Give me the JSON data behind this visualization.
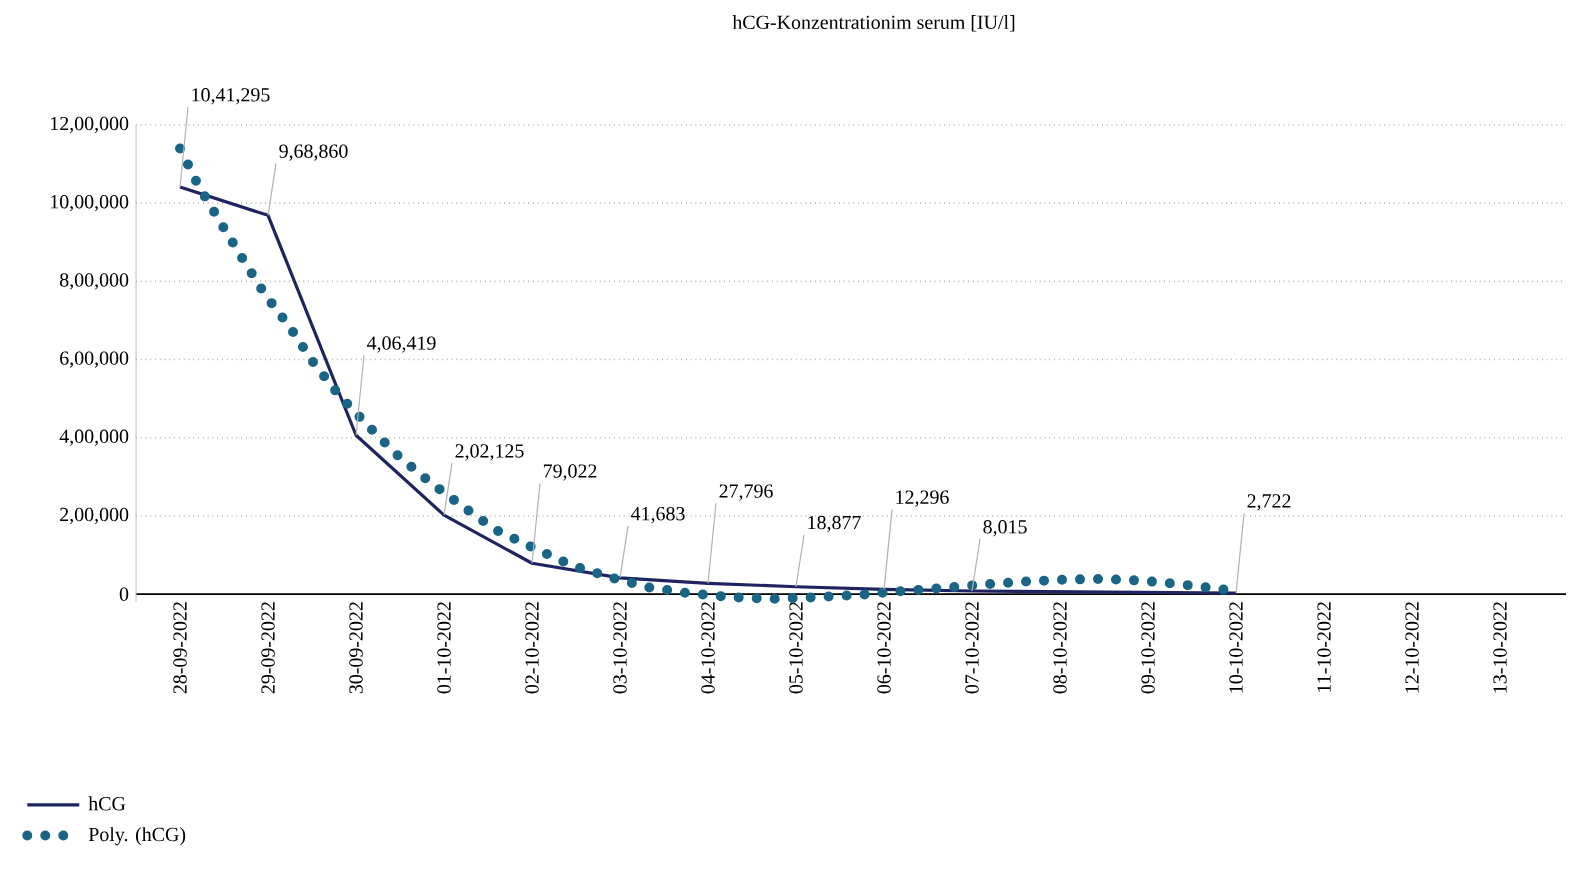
{
  "chart_data": {
    "type": "line",
    "title": "hCG-Konzentrationim serum [IU/l]",
    "xlim": [
      "2022-09-27T12:00",
      "2022-10-13T18:00"
    ],
    "xticks": [
      {
        "value": "2022-09-28",
        "label": "28-09-2022"
      },
      {
        "value": "2022-09-29",
        "label": "29-09-2022"
      },
      {
        "value": "2022-09-30",
        "label": "30-09-2022"
      },
      {
        "value": "2022-10-01",
        "label": "01-10-2022"
      },
      {
        "value": "2022-10-02",
        "label": "02-10-2022"
      },
      {
        "value": "2022-10-03",
        "label": "03-10-2022"
      },
      {
        "value": "2022-10-04",
        "label": "04-10-2022"
      },
      {
        "value": "2022-10-05",
        "label": "05-10-2022"
      },
      {
        "value": "2022-10-06",
        "label": "06-10-2022"
      },
      {
        "value": "2022-10-07",
        "label": "07-10-2022"
      },
      {
        "value": "2022-10-08",
        "label": "08-10-2022"
      },
      {
        "value": "2022-10-09",
        "label": "09-10-2022"
      },
      {
        "value": "2022-10-10",
        "label": "10-10-2022"
      },
      {
        "value": "2022-10-11",
        "label": "11-10-2022"
      },
      {
        "value": "2022-10-12",
        "label": "12-10-2022"
      },
      {
        "value": "2022-10-13",
        "label": "13-10-2022"
      }
    ],
    "ylim": [
      -20000,
      1200000
    ],
    "yticks": [
      0,
      {
        "value": 200000,
        "label": "2,00,000"
      },
      {
        "value": 400000,
        "label": "4,00,000"
      },
      {
        "value": 600000,
        "label": "6,00,000"
      },
      {
        "value": 800000,
        "label": "8,00,000"
      },
      {
        "value": 1000000,
        "label": "10,00,000"
      },
      {
        "value": 1200000,
        "label": "12,00,000"
      }
    ],
    "grid": "y",
    "legend": "bottom left",
    "marker": "none",
    "series": [
      {
        "name": "hCG",
        "color": "#1f2460",
        "line_style": "solid",
        "x": [
          "2022-09-28",
          "2022-09-29",
          "2022-09-30",
          "2022-10-01",
          "2022-10-02",
          "2022-10-03",
          "2022-10-04",
          "2022-10-05",
          "2022-10-06",
          "2022-10-07",
          "2022-10-10"
        ],
        "values": [
          1041295,
          968860,
          406419,
          202125,
          79022,
          41683,
          27796,
          18877,
          12296,
          8015,
          2722
        ],
        "value_labels": [
          "10,41,295",
          "9,68,860",
          "4,06,419",
          "2,02,125",
          "79,022",
          "41,683",
          "27,796",
          "18,877",
          "12,296",
          "8,015",
          "2,722"
        ]
      },
      {
        "name": "Poly. (hCG)",
        "color": "#1a6585",
        "line_style": "dotted",
        "x": [
          "2022-09-28T00:00",
          "2022-09-28T05:00",
          "2022-09-28T11:00",
          "2022-09-28T17:00",
          "2022-09-28T23:00",
          "2022-09-29T06:00",
          "2022-09-29T12:00",
          "2022-09-29T19:00",
          "2022-09-30T03:00",
          "2022-09-30T11:00",
          "2022-09-30T20:00",
          "2022-10-01T05:00",
          "2022-10-01T14:00",
          "2022-10-02T01:00",
          "2022-10-02T11:00",
          "2022-10-02T22:00",
          "2022-10-03T08:00",
          "2022-10-03T19:00",
          "2022-10-04T07:00",
          "2022-10-04T18:00",
          "2022-10-05T05:00",
          "2022-10-05T17:00",
          "2022-10-06T04:00",
          "2022-10-06T15:00",
          "2022-10-07T02:00",
          "2022-10-07T14:00",
          "2022-10-08T01:00",
          "2022-10-08T12:00",
          "2022-10-08T23:00",
          "2022-10-09T10:00",
          "2022-10-09T22:00"
        ],
        "values": [
          1140000,
          1045000,
          951000,
          859000,
          769000,
          682000,
          597000,
          513000,
          433000,
          358000,
          288000,
          225000,
          165000,
          116000,
          73000,
          41000,
          17000,
          2000,
          -8000,
          -12000,
          -8000,
          -2000,
          7000,
          15000,
          24000,
          32000,
          37000,
          39000,
          34000,
          24000,
          10000
        ]
      }
    ]
  }
}
